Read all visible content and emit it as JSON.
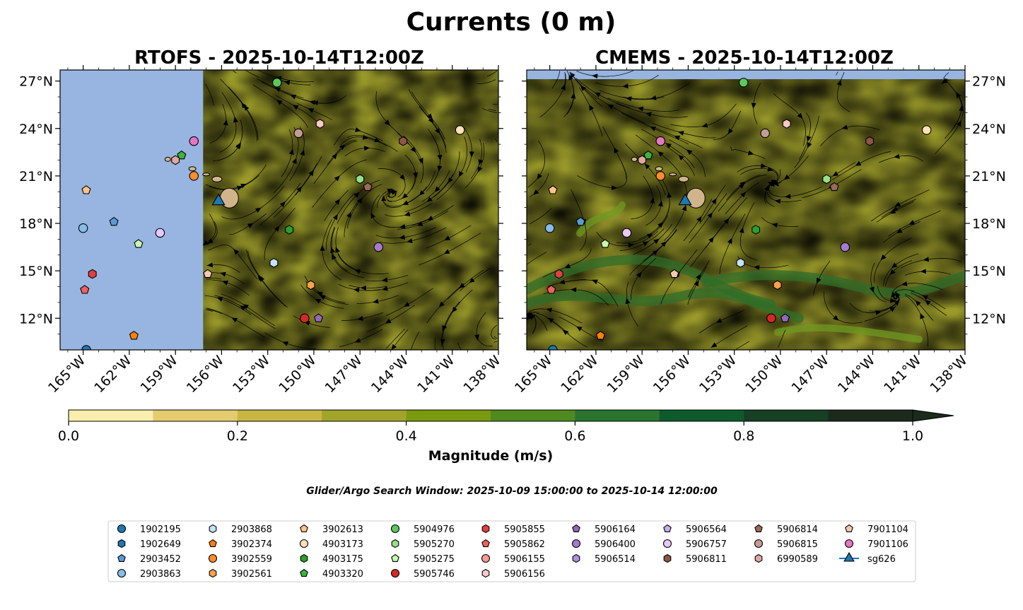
{
  "title": "Currents (0 m)",
  "footnote": "Glider/Argo Search Window: 2025-10-09 15:00:00 to 2025-10-14 12:00:00",
  "colors": {
    "land_bg": "#97b5e0",
    "island": "#d2b48c",
    "scale": [
      "#f9eeae",
      "#e4cc6e",
      "#c8b642",
      "#a2a42a",
      "#7a9a10",
      "#4f8a1e",
      "#2a7430",
      "#0f5a2c",
      "#163f24",
      "#1b2a1b"
    ]
  },
  "chart_data": [
    {
      "type": "map",
      "name": "rtofs",
      "title": "RTOFS - 2025-10-14T12:00Z",
      "lon_range": [
        -166.5,
        -138
      ],
      "lat_range": [
        10,
        27.7
      ],
      "no_data_west_of": -157.2,
      "xticks": [
        -165,
        -162,
        -159,
        -156,
        -153,
        -150,
        -147,
        -144,
        -141,
        -138
      ],
      "yticks": [
        12,
        15,
        18,
        21,
        24,
        27
      ],
      "xtick_labels": [
        "165°W",
        "162°W",
        "159°W",
        "156°W",
        "153°W",
        "150°W",
        "147°W",
        "144°W",
        "141°W",
        "138°W"
      ],
      "ytick_labels": [
        "12°N",
        "15°N",
        "18°N",
        "21°N",
        "24°N",
        "27°N"
      ],
      "ytick_side": "left"
    },
    {
      "type": "map",
      "name": "cmems",
      "title": "CMEMS - 2025-10-14T12:00Z",
      "lon_range": [
        -166.5,
        -138
      ],
      "lat_range": [
        10,
        27.7
      ],
      "no_data_north_of": 27.1,
      "xticks": [
        -165,
        -162,
        -159,
        -156,
        -153,
        -150,
        -147,
        -144,
        -141,
        -138
      ],
      "yticks": [
        12,
        15,
        18,
        21,
        24,
        27
      ],
      "xtick_labels": [
        "165°W",
        "162°W",
        "159°W",
        "156°W",
        "153°W",
        "150°W",
        "147°W",
        "144°W",
        "141°W",
        "138°W"
      ],
      "ytick_labels": [
        "12°N",
        "15°N",
        "18°N",
        "21°N",
        "24°N",
        "27°N"
      ],
      "ytick_side": "right"
    }
  ],
  "colorbar": {
    "label": "Magnitude (m/s)",
    "levels": [
      0,
      0.1,
      0.2,
      0.3,
      0.4,
      0.5,
      0.6,
      0.7,
      0.8,
      0.9,
      1.0
    ],
    "ticks": [
      0.0,
      0.2,
      0.4,
      0.6,
      0.8,
      1.0
    ],
    "tick_labels": [
      "0.0",
      "0.2",
      "0.4",
      "0.6",
      "0.8",
      "1.0"
    ],
    "extend": "max"
  },
  "platforms": [
    {
      "id": "1902195",
      "marker": "circle",
      "color": "#1f77b4",
      "lon": -164.8,
      "lat": 10
    },
    {
      "id": "1902649",
      "marker": "hexagon",
      "color": "#1f77b4",
      "lon": null,
      "lat": null
    },
    {
      "id": "2903452",
      "marker": "pentagon",
      "color": "#5b9bd5",
      "lon": -163.0,
      "lat": 18.1
    },
    {
      "id": "2903863",
      "marker": "circle",
      "color": "#87bde8",
      "lon": -165.0,
      "lat": 17.7
    },
    {
      "id": "2903868",
      "marker": "hexagon",
      "color": "#c6e2f7",
      "lon": -152.6,
      "lat": 15.5
    },
    {
      "id": "3902374",
      "marker": "pentagon",
      "color": "#ff7f0e",
      "lon": -161.7,
      "lat": 10.9
    },
    {
      "id": "3902559",
      "marker": "circle",
      "color": "#ff8c2a",
      "lon": -157.8,
      "lat": 21.0
    },
    {
      "id": "3902561",
      "marker": "hexagon",
      "color": "#ffa04a",
      "lon": -150.2,
      "lat": 14.1
    },
    {
      "id": "3902613",
      "marker": "pentagon",
      "color": "#ffc48a",
      "lon": -164.8,
      "lat": 20.1
    },
    {
      "id": "4903173",
      "marker": "circle",
      "color": "#ffe0b8",
      "lon": -140.5,
      "lat": 23.9
    },
    {
      "id": "4903175",
      "marker": "hexagon",
      "color": "#2ca02c",
      "lon": -151.6,
      "lat": 17.6
    },
    {
      "id": "4903320",
      "marker": "pentagon",
      "color": "#3cb43c",
      "lon": -158.6,
      "lat": 22.3
    },
    {
      "id": "5904976",
      "marker": "circle",
      "color": "#5cc85c",
      "lon": -152.4,
      "lat": 26.9
    },
    {
      "id": "5905270",
      "marker": "hexagon",
      "color": "#98df8a",
      "lon": -147.0,
      "lat": 20.8
    },
    {
      "id": "5905275",
      "marker": "pentagon",
      "color": "#ccf5b0",
      "lon": -161.4,
      "lat": 16.7
    },
    {
      "id": "5905746",
      "marker": "circle",
      "color": "#d62728",
      "lon": -150.6,
      "lat": 12.0
    },
    {
      "id": "5905855",
      "marker": "hexagon",
      "color": "#e04040",
      "lon": -164.4,
      "lat": 14.8
    },
    {
      "id": "5905862",
      "marker": "pentagon",
      "color": "#f06060",
      "lon": -164.9,
      "lat": 13.8
    },
    {
      "id": "5906155",
      "marker": "circle",
      "color": "#ff9896",
      "lon": null,
      "lat": null
    },
    {
      "id": "5906156",
      "marker": "hexagon",
      "color": "#ffc8c8",
      "lon": -149.6,
      "lat": 24.3
    },
    {
      "id": "5906164",
      "marker": "pentagon",
      "color": "#9467bd",
      "lon": -149.7,
      "lat": 12.0
    },
    {
      "id": "5906400",
      "marker": "circle",
      "color": "#a57bd0",
      "lon": -145.8,
      "lat": 16.5
    },
    {
      "id": "5906514",
      "marker": "hexagon",
      "color": "#b090e0",
      "lon": null,
      "lat": null
    },
    {
      "id": "5906564",
      "marker": "pentagon",
      "color": "#c5b0ea",
      "lon": null,
      "lat": null
    },
    {
      "id": "5906757",
      "marker": "circle",
      "color": "#e8c8f5",
      "lon": -160.0,
      "lat": 17.4
    },
    {
      "id": "5906811",
      "marker": "hexagon",
      "color": "#8c564b",
      "lon": -144.2,
      "lat": 23.2
    },
    {
      "id": "5906814",
      "marker": "pentagon",
      "color": "#9a6a5c",
      "lon": -146.5,
      "lat": 20.3
    },
    {
      "id": "5906815",
      "marker": "circle",
      "color": "#c49c94",
      "lon": -151.0,
      "lat": 23.7
    },
    {
      "id": "6990589",
      "marker": "hexagon",
      "color": "#e0a8a0",
      "lon": -159.0,
      "lat": 22.0
    },
    {
      "id": "7901104",
      "marker": "pentagon",
      "color": "#f5c8b0",
      "lon": -156.9,
      "lat": 14.8
    },
    {
      "id": "7901106",
      "marker": "circle",
      "color": "#e377c2",
      "lon": -157.8,
      "lat": 23.2
    },
    {
      "id": "sg626",
      "marker": "triangle",
      "color": "#1f77b4",
      "lon": -156.2,
      "lat": 19.4
    }
  ]
}
